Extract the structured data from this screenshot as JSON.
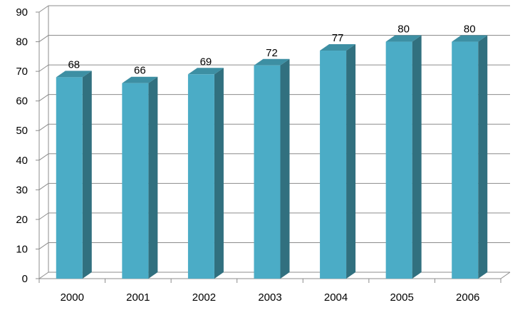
{
  "chart_data": {
    "type": "bar",
    "categories": [
      "2000",
      "2001",
      "2002",
      "2003",
      "2004",
      "2005",
      "2006"
    ],
    "values": [
      68,
      66,
      69,
      72,
      77,
      80,
      80
    ],
    "data_labels": [
      "68",
      "66",
      "69",
      "72",
      "77",
      "80",
      "80"
    ],
    "yticks": [
      "0",
      "10",
      "20",
      "30",
      "40",
      "50",
      "60",
      "70",
      "80",
      "90"
    ],
    "ylim": [
      0,
      90
    ],
    "title": "",
    "xlabel": "",
    "ylabel": "",
    "grid": true,
    "style": "3d-column",
    "colors": {
      "bar_front": "#4BACC6",
      "bar_side": "#31707F",
      "bar_top": "#3D8FA3",
      "gridline": "#8C8C8C"
    }
  }
}
